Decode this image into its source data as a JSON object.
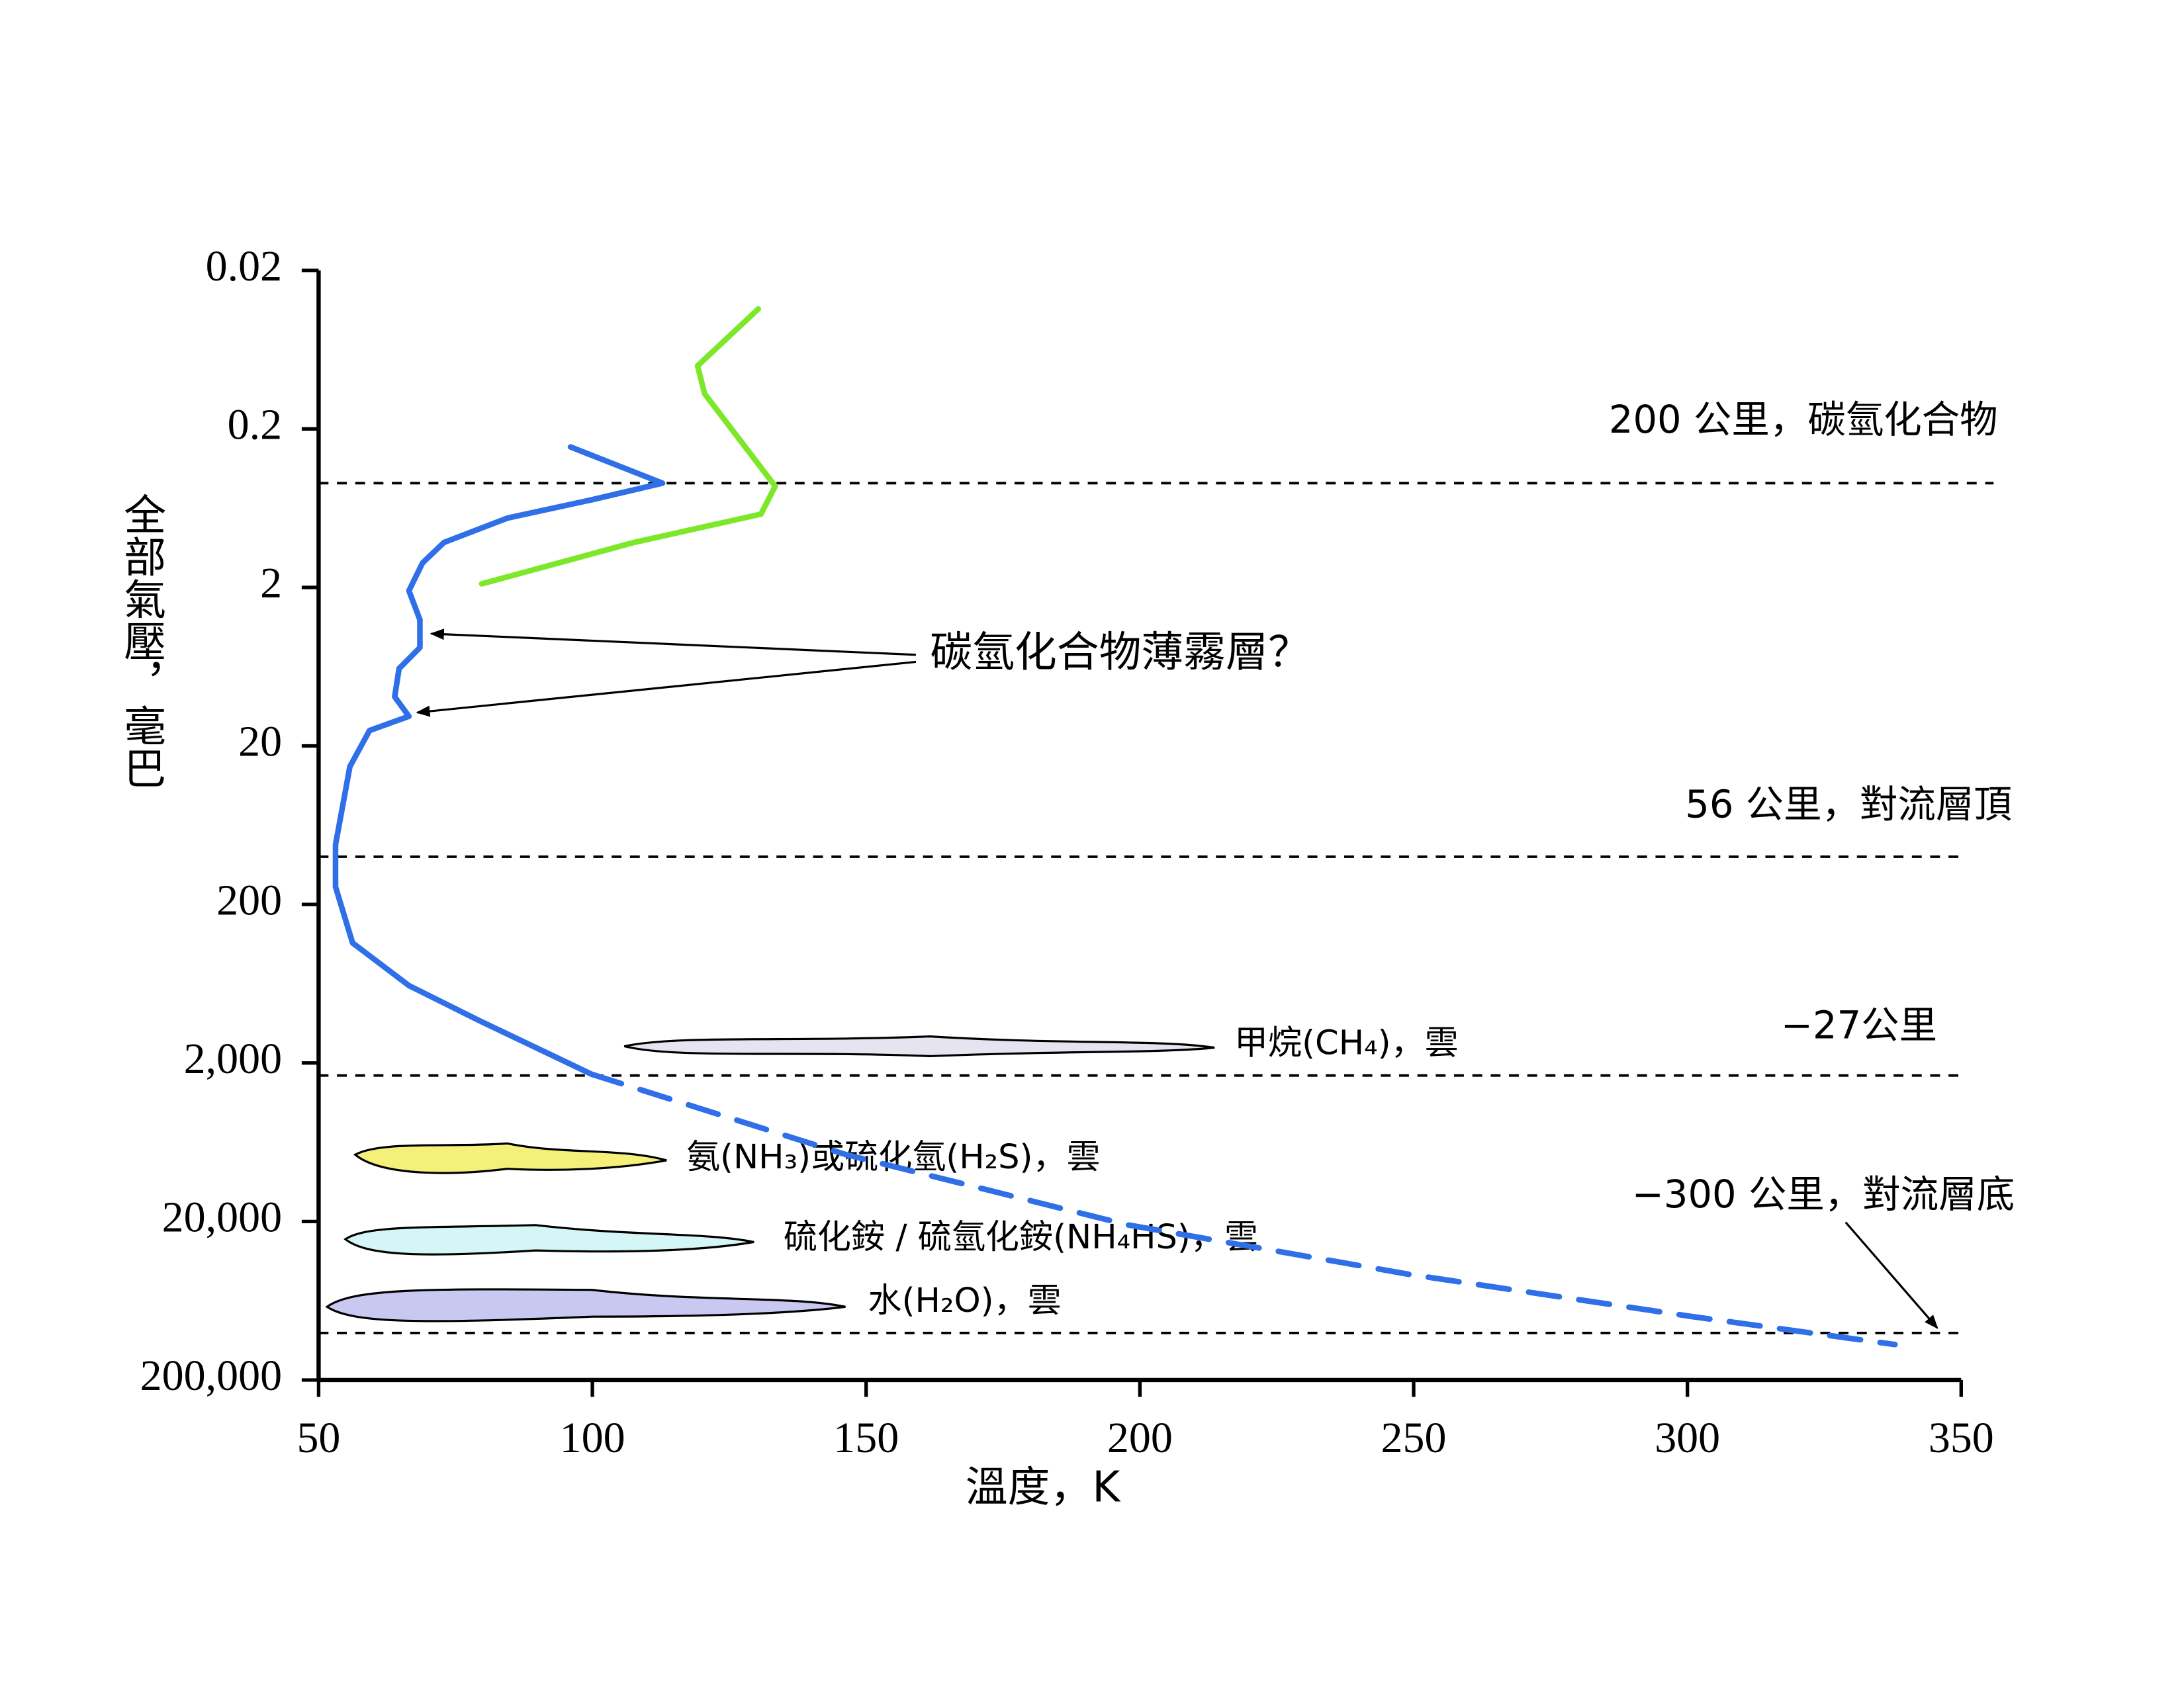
{
  "chart_data": {
    "type": "line",
    "x_label": "溫度，K",
    "y_label": "全部氣壓，毫巴",
    "xlim": [
      50,
      350
    ],
    "xticks": [
      50,
      100,
      150,
      200,
      250,
      300,
      350
    ],
    "ylim": [
      0.02,
      200000
    ],
    "y_log": true,
    "y_inverted": true,
    "yticks": [
      0.02,
      0.2,
      2,
      20,
      200,
      {
        "value": 2000,
        "label": "2,000"
      },
      {
        "value": 20000,
        "label": "20,000"
      },
      {
        "value": 200000,
        "label": "200,000"
      }
    ],
    "series": [
      {
        "color": "#2f6fe8",
        "dashed": false,
        "x": [
          96.0,
          112.8,
          99.9,
          84.5,
          72.9,
          69.0,
          66.5,
          68.5,
          68.5,
          64.7,
          63.9,
          66.5,
          59.3,
          55.7,
          53.1,
          53.1,
          56.2,
          66.5,
          79.3,
          99.9
        ],
        "values": [
          0.26,
          0.44,
          0.56,
          0.73,
          1.04,
          1.4,
          2.1,
          3.2,
          4.8,
          6.5,
          9.8,
          13,
          16,
          27,
          84,
          155,
          350,
          650,
          1080,
          2360
        ]
      },
      {
        "color": "#2f6fe8",
        "dashed": true,
        "x": [
          99.9,
          146.2,
          197.7,
          249.1,
          300.6,
          337.9
        ],
        "values": [
          2360,
          7550,
          21000,
          43000,
          79400,
          119400
        ]
      },
      {
        "color": "#7de82a",
        "dashed": false,
        "x": [
          130.3,
          119.2,
          120.5,
          133.4,
          130.8,
          107.6,
          79.8
        ],
        "values": [
          0.035,
          0.08,
          0.12,
          0.46,
          0.69,
          1.04,
          1.9
        ]
      }
    ],
    "reference_lines": [
      {
        "value": 0.44,
        "label": "200 公里，碳氫化合物"
      },
      {
        "value": 100,
        "label": "56 公里，對流層頂"
      },
      {
        "value": 2400,
        "label": "−27公里"
      },
      {
        "value": 101000,
        "label": "−300 公里，對流層底"
      }
    ],
    "clouds": [
      {
        "label": "甲烷(CH₄)，雲",
        "color": "#e6e4f0"
      },
      {
        "label": "氨(NH₃)或硫化氫(H₂S)，雲",
        "color": "#f5f07a"
      },
      {
        "label": "硫化銨 / 硫氫化銨(NH₄HS)，雲",
        "color": "#d4f6f6"
      },
      {
        "label": "水(H₂O)，雲",
        "color": "#c8c8f0"
      }
    ],
    "annotation": "碳氫化合物薄霧層？"
  }
}
